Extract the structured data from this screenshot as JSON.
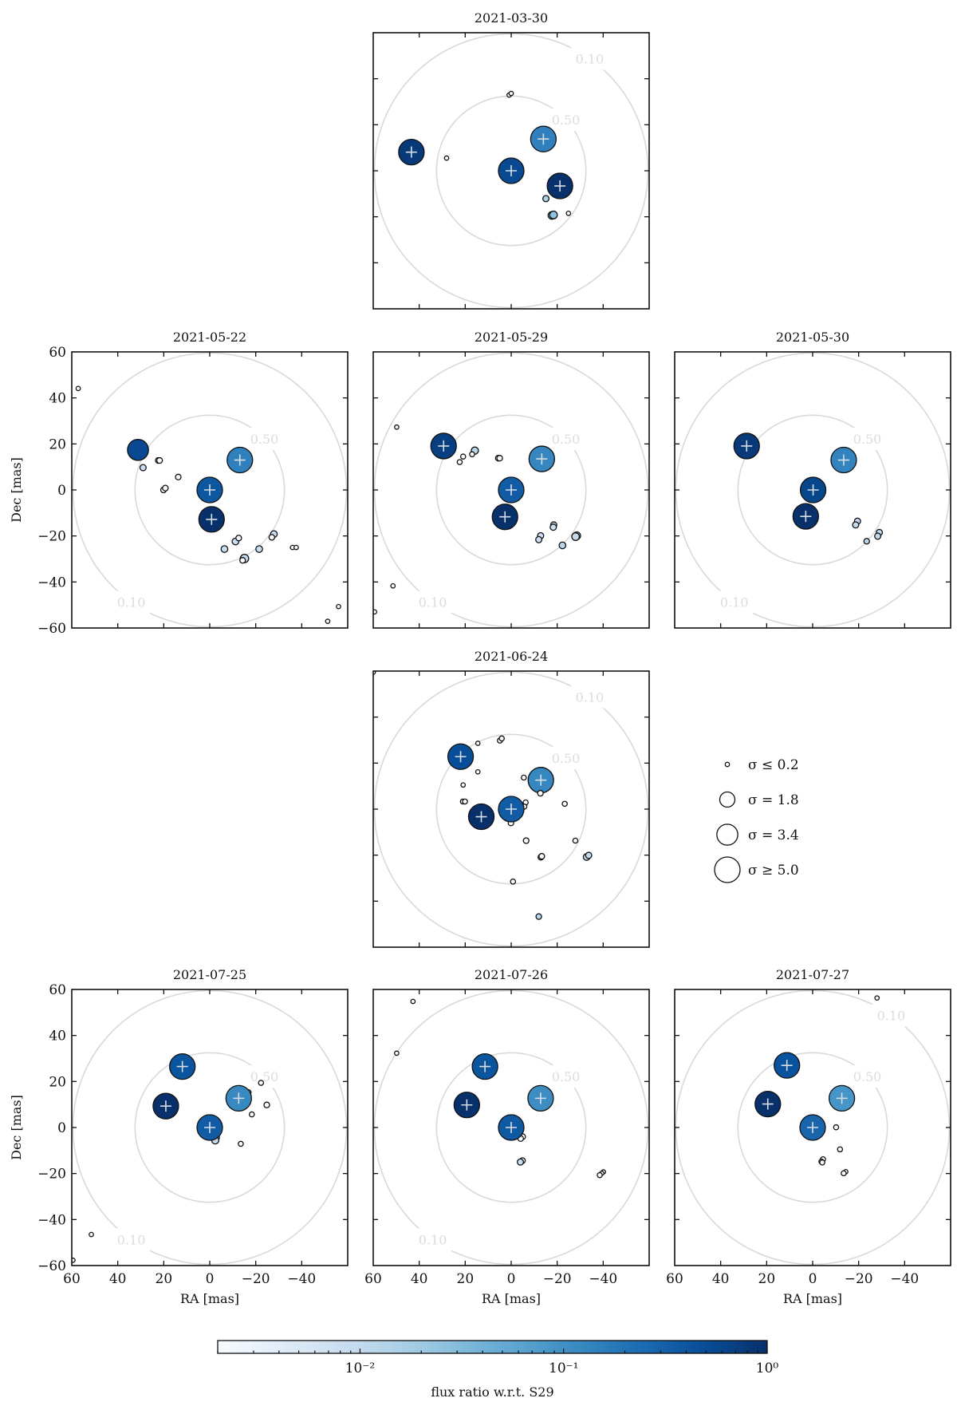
{
  "chart_data": {
    "type": "scatter",
    "xlabel": "RA [mas]",
    "ylabel": "Dec [mas]",
    "xlim": [
      60,
      -60
    ],
    "ylim": [
      -60,
      60
    ],
    "x_ticks": [
      "60",
      "40",
      "20",
      "0",
      "−20",
      "−40"
    ],
    "y_ticks": [
      "60",
      "40",
      "20",
      "0",
      "−20",
      "−40",
      "−60"
    ],
    "x_tick_values": [
      60,
      40,
      20,
      0,
      -20,
      -40
    ],
    "y_tick_values": [
      60,
      40,
      20,
      0,
      -20,
      -40,
      -60
    ],
    "grid": false,
    "point_fields": [
      "ra",
      "dec",
      "sigma",
      "flux_ratio"
    ],
    "contours": [
      {
        "label": "0.50",
        "radius_mas": 32.5
      },
      {
        "label": "0.10",
        "radius_mas": 59.5
      }
    ],
    "panels": [
      {
        "date": "2021-03-30",
        "label_010_position": "upper-right",
        "points": [
          [
            43.4,
            8.1,
            5,
            0.8
          ],
          [
            0,
            0,
            5,
            0.55
          ],
          [
            -14,
            13.8,
            5,
            0.15
          ],
          [
            -21.2,
            -6.6,
            5,
            1.0
          ],
          [
            28.1,
            5.5,
            0.2,
            0.002
          ],
          [
            0.9,
            32.9,
            0.2,
            0.002
          ],
          [
            0,
            33.6,
            0.2,
            0.002
          ],
          [
            -15.1,
            -12.1,
            0.35,
            0.015
          ],
          [
            -17.7,
            -19.4,
            0.5,
            0.03
          ],
          [
            -18.4,
            -19.2,
            0.5,
            0.025
          ],
          [
            -24.9,
            -18.5,
            0.2,
            0.002
          ]
        ]
      },
      {
        "date": "2021-05-22",
        "label_010_position": "lower-left",
        "points": [
          [
            31.2,
            17.4,
            3.4,
            0.55
          ],
          [
            -13.1,
            13,
            5,
            0.15
          ],
          [
            0,
            0,
            5,
            0.4
          ],
          [
            -0.8,
            -12.8,
            5,
            1.0
          ],
          [
            57.2,
            44.1,
            0.2,
            0.002
          ],
          [
            29,
            9.7,
            0.35,
            0.008
          ],
          [
            22.4,
            12.8,
            0.3,
            0.002
          ],
          [
            21.8,
            12.8,
            0.3,
            0.002
          ],
          [
            13.7,
            5.6,
            0.3,
            0.002
          ],
          [
            20.1,
            0,
            0.3,
            0.002
          ],
          [
            19.3,
            0.8,
            0.3,
            0.002
          ],
          [
            -6.4,
            -25.7,
            0.4,
            0.008
          ],
          [
            -11.2,
            -22.4,
            0.4,
            0.008
          ],
          [
            -12.6,
            -20.9,
            0.3,
            0.002
          ],
          [
            -15.1,
            -29.8,
            0.6,
            0.01
          ],
          [
            -14.3,
            -30.6,
            0.3,
            0.002
          ],
          [
            -21.5,
            -25.7,
            0.4,
            0.008
          ],
          [
            -27.9,
            -19.2,
            0.4,
            0.008
          ],
          [
            -27,
            -20.6,
            0.3,
            0.002
          ],
          [
            -36,
            -25,
            0.2,
            0.002
          ],
          [
            -37.6,
            -25,
            0.2,
            0.002
          ],
          [
            -51.3,
            -57.1,
            0.2,
            0.002
          ],
          [
            -56,
            -50.7,
            0.2,
            0.002
          ]
        ]
      },
      {
        "date": "2021-05-29",
        "label_010_position": "lower-left",
        "points": [
          [
            29.4,
            19.1,
            5,
            0.7
          ],
          [
            -13.3,
            13.5,
            5,
            0.13
          ],
          [
            0,
            0,
            5,
            0.35
          ],
          [
            2.7,
            -11.7,
            5,
            1.0
          ],
          [
            49.8,
            27.3,
            0.2,
            0.002
          ],
          [
            15.8,
            17.1,
            0.45,
            0.012
          ],
          [
            17,
            15.5,
            0.25,
            0.002
          ],
          [
            20.9,
            14.5,
            0.25,
            0.002
          ],
          [
            22.4,
            12.1,
            0.25,
            0.002
          ],
          [
            5.6,
            13.8,
            0.3,
            0.002
          ],
          [
            5,
            13.8,
            0.3,
            0.002
          ],
          [
            -18.5,
            -15.2,
            0.35,
            0.012
          ],
          [
            -18.3,
            -16.2,
            0.35,
            0.008
          ],
          [
            -12.8,
            -19.9,
            0.35,
            0.008
          ],
          [
            -12,
            -21.6,
            0.35,
            0.008
          ],
          [
            -22.3,
            -24.1,
            0.4,
            0.012
          ],
          [
            -28.5,
            -19.9,
            0.5,
            0.012
          ],
          [
            -28,
            -20.3,
            0.5,
            0.01
          ],
          [
            51.4,
            -41.7,
            0.2,
            0.002
          ],
          [
            59.4,
            -53,
            0.2,
            0.002
          ]
        ]
      },
      {
        "date": "2021-05-30",
        "label_010_position": "lower-left",
        "points": [
          [
            28.7,
            19.1,
            5,
            0.8
          ],
          [
            -13.5,
            13,
            5,
            0.14
          ],
          [
            -0.2,
            0,
            5,
            0.6
          ],
          [
            3,
            -11.5,
            5,
            1.0
          ],
          [
            -19.5,
            -13.6,
            0.35,
            0.01
          ],
          [
            -18.7,
            -15.2,
            0.35,
            0.01
          ],
          [
            -29,
            -18.5,
            0.35,
            0.01
          ],
          [
            -28.3,
            -20.1,
            0.35,
            0.01
          ],
          [
            -23.5,
            -22.3,
            0.3,
            0.012
          ]
        ]
      },
      {
        "date": "2021-06-24",
        "label_010_position": "upper-right",
        "points": [
          [
            22,
            22.8,
            5,
            0.5
          ],
          [
            -12.9,
            12.6,
            5,
            0.13
          ],
          [
            13,
            -3.3,
            5,
            1.0
          ],
          [
            14.5,
            28.6,
            0.2,
            0.002
          ],
          [
            4.9,
            29.8,
            0.25,
            0.002
          ],
          [
            4.1,
            30.7,
            0.25,
            0.002
          ],
          [
            14.5,
            16.2,
            0.2,
            0.002
          ],
          [
            20.9,
            10.5,
            0.2,
            0.002
          ],
          [
            21,
            3.3,
            0.25,
            0.002
          ],
          [
            20.1,
            3.3,
            0.25,
            0.002
          ],
          [
            -5.5,
            13.7,
            0.25,
            0.002
          ],
          [
            -12.7,
            6.9,
            0.3,
            0.002
          ],
          [
            -6.3,
            2.9,
            0.25,
            0.002
          ],
          [
            -5.7,
            1.1,
            0.25,
            0.002
          ],
          [
            0.1,
            -6,
            0.3,
            0.002
          ],
          [
            0,
            0,
            5,
            0.35
          ],
          [
            -23.3,
            2.3,
            0.25,
            0.002
          ],
          [
            -6.5,
            -13.7,
            0.3,
            0.002
          ],
          [
            -27.9,
            -13.7,
            0.25,
            0.002
          ],
          [
            -12.9,
            -20.9,
            0.3,
            0.002
          ],
          [
            -13.3,
            -20.5,
            0.3,
            0.002
          ],
          [
            -0.8,
            -31.5,
            0.25,
            0.002
          ],
          [
            60,
            59.5,
            0.2,
            0.002
          ],
          [
            -32.8,
            -20.8,
            0.4,
            0.008
          ],
          [
            -33.7,
            -20.1,
            0.35,
            0.01
          ],
          [
            -12,
            -46.7,
            0.3,
            0.012
          ]
        ]
      },
      {
        "date": "2021-07-25",
        "label_010_position": "lower-left",
        "points": [
          [
            11.9,
            26.5,
            5,
            0.42
          ],
          [
            19.1,
            9.3,
            5,
            1.0
          ],
          [
            -16.9,
            15.3,
            0.25,
            0.002
          ],
          [
            -12.6,
            12.7,
            5,
            0.12
          ],
          [
            -3,
            -4.4,
            0.3,
            0.002
          ],
          [
            -2.4,
            -5.6,
            0.45,
            0.01
          ],
          [
            0,
            0,
            5,
            0.35
          ],
          [
            -22.3,
            19.4,
            0.25,
            0.002
          ],
          [
            -24.8,
            9.8,
            0.3,
            0.002
          ],
          [
            -18.3,
            5.7,
            0.25,
            0.002
          ],
          [
            -13.5,
            -7.1,
            0.25,
            0.002
          ],
          [
            51.5,
            -46.5,
            0.2,
            0.002
          ],
          [
            59.5,
            -57.7,
            0.2,
            0.002
          ]
        ]
      },
      {
        "date": "2021-07-26",
        "label_010_position": "lower-left",
        "points": [
          [
            11.4,
            26.5,
            5,
            0.42
          ],
          [
            19.3,
            9.8,
            5,
            1.0
          ],
          [
            -12.8,
            12.7,
            5,
            0.11
          ],
          [
            -5,
            -4,
            0.3,
            0.002
          ],
          [
            -4.1,
            -4.8,
            0.3,
            0.002
          ],
          [
            0,
            0,
            5,
            0.38
          ],
          [
            42.7,
            54.8,
            0.2,
            0.002
          ],
          [
            49.8,
            32.3,
            0.2,
            0.002
          ],
          [
            -4.9,
            -14.4,
            0.3,
            0.002
          ],
          [
            -4,
            -15,
            0.35,
            0.008
          ],
          [
            -40.1,
            -19.3,
            0.2,
            0.002
          ],
          [
            -39.4,
            -19.9,
            0.2,
            0.002
          ],
          [
            -38.5,
            -20.7,
            0.25,
            0.002
          ]
        ]
      },
      {
        "date": "2021-07-27",
        "label_010_position": "upper-right",
        "points": [
          [
            11.2,
            27,
            5,
            0.45
          ],
          [
            19.5,
            10.2,
            5,
            1.0
          ],
          [
            0,
            0,
            5,
            0.28
          ],
          [
            -12.7,
            12.7,
            5,
            0.09
          ],
          [
            -28,
            56.3,
            0.2,
            0.002
          ],
          [
            -10.2,
            0.1,
            0.25,
            0.002
          ],
          [
            -11.9,
            -9.5,
            0.25,
            0.002
          ],
          [
            -4.5,
            -13.8,
            0.25,
            0.002
          ],
          [
            -3.8,
            -14.8,
            0.25,
            0.002
          ],
          [
            -4.2,
            -15.2,
            0.25,
            0.002
          ],
          [
            -14.4,
            -19.2,
            0.2,
            0.002
          ],
          [
            -13.5,
            -19.9,
            0.25,
            0.002
          ]
        ]
      }
    ],
    "size_legend": [
      {
        "sigma": 0.2,
        "label": "σ ≤ 0.2"
      },
      {
        "sigma": 1.8,
        "label": "σ = 1.8"
      },
      {
        "sigma": 3.4,
        "label": "σ = 3.4"
      },
      {
        "sigma": 5.0,
        "label": "σ ≥ 5.0"
      }
    ],
    "colorbar": {
      "label": "flux ratio w.r.t. S29",
      "scale": "log",
      "range": [
        0.002,
        1
      ],
      "colormap": "Blues",
      "ticks": [
        {
          "value": 0.01,
          "label": "10⁻²"
        },
        {
          "value": 0.1,
          "label": "10⁻¹"
        },
        {
          "value": 1,
          "label": "10⁰"
        }
      ]
    },
    "colors": {
      "contour": "#d9d9d9",
      "marker_edge": "#111111",
      "star_cross": "#d6dde6"
    }
  }
}
